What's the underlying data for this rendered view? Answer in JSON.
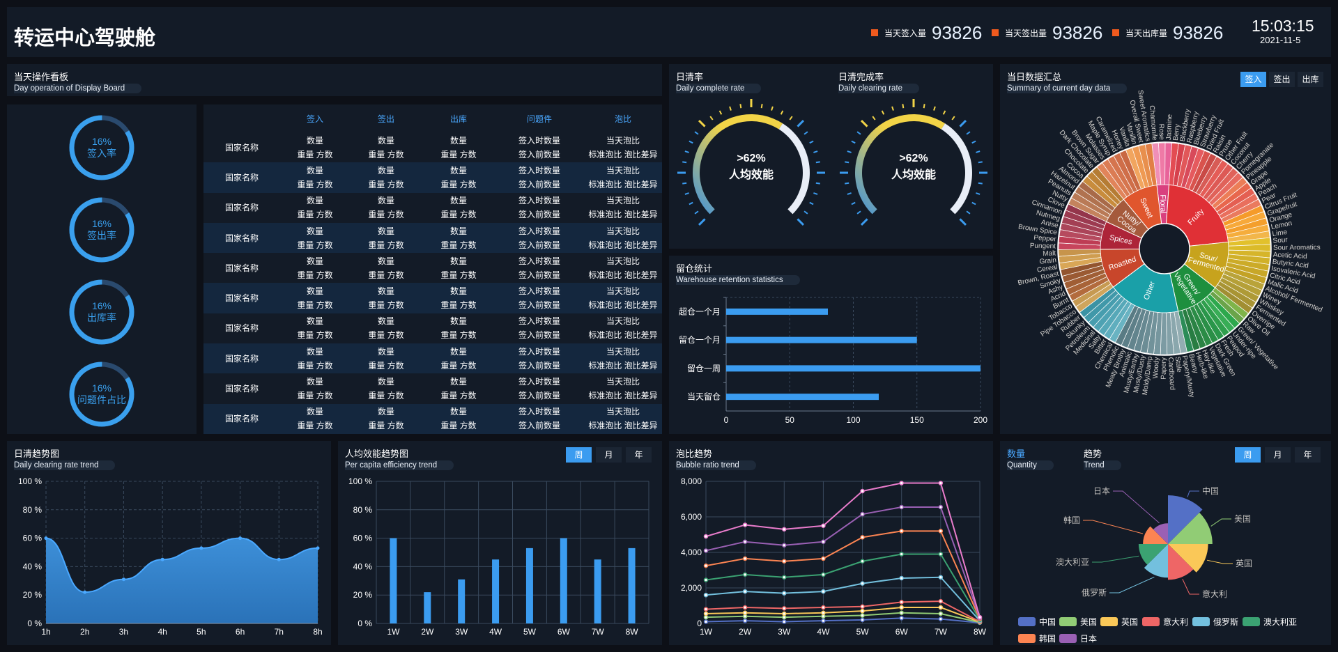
{
  "header": {
    "title": "转运中心驾驶舱",
    "stats": [
      {
        "label": "当天签入量",
        "value": "93826"
      },
      {
        "label": "当天签出量",
        "value": "93826"
      },
      {
        "label": "当天出库量",
        "value": "93826"
      }
    ],
    "time": "15:03:15",
    "date": "2021-11-5"
  },
  "day_board": {
    "title": "当天操作看板",
    "subtitle": "Day operation of Display Board",
    "rings": [
      {
        "pct": "16%",
        "label": "签入率",
        "value": 16
      },
      {
        "pct": "16%",
        "label": "签出率",
        "value": 16
      },
      {
        "pct": "16%",
        "label": "出库率",
        "value": 16
      },
      {
        "pct": "16%",
        "label": "问题件占比",
        "value": 16
      }
    ],
    "table": {
      "headers": [
        "",
        "签入",
        "签出",
        "出库",
        "问题件",
        "泡比"
      ],
      "row": {
        "country": "国家名称",
        "c1a": "数量",
        "c1b": "重量 方数",
        "c2a": "数量",
        "c2b": "重量 方数",
        "c3a": "数量",
        "c3b": "重量 方数",
        "c4a": "签入时数量",
        "c4b": "签入前数量",
        "c5a": "当天泡比",
        "c5b": "标准泡比 泡比差异"
      },
      "row_count": 10
    }
  },
  "gauges": [
    {
      "title": "日清率",
      "subtitle": "Daily complete rate",
      "value": ">62%",
      "label": "人均效能",
      "pct": 62
    },
    {
      "title": "日清完成率",
      "subtitle": "Daily clearing rate",
      "value": ">62%",
      "label": "人均效能",
      "pct": 62
    }
  ],
  "retention": {
    "title": "留仓统计",
    "subtitle": "Warehouse retention statistics",
    "chart_data": {
      "type": "bar",
      "orientation": "horizontal",
      "categories": [
        "超仓一个月",
        "留仓一个月",
        "留仓一周",
        "当天留仓"
      ],
      "values": [
        80,
        150,
        200,
        120
      ],
      "xlim": [
        0,
        200
      ],
      "xticks": [
        "0",
        "50",
        "100",
        "150",
        "200"
      ]
    }
  },
  "summary": {
    "title": "当日数据汇总",
    "subtitle": "Summary of current day data",
    "buttons": [
      "签入",
      "签出",
      "出库"
    ],
    "chart_data": {
      "type": "sunburst",
      "inner": [
        {
          "name": "Floral",
          "color": "#d9407f",
          "outer": [
            [
              "Chamomile",
              "#f08fb7"
            ],
            [
              "Rose",
              "#ef7aa6"
            ],
            [
              "Jasmine",
              "#e8639a"
            ]
          ]
        },
        {
          "name": "Fruity",
          "color": "#e03036",
          "outer": [
            [
              "Berry",
              "#e34c53"
            ],
            [
              "Blackberry",
              "#d6414c"
            ],
            [
              "Raspberry",
              "#e15759"
            ],
            [
              "Blueberry",
              "#d84a5a"
            ],
            [
              "Strawberry",
              "#e55a5e"
            ],
            [
              "Dried Fruit",
              "#d9534d"
            ],
            [
              "Raisin",
              "#c94a46"
            ],
            [
              "Prune",
              "#d75c56"
            ],
            [
              "Other Fruit",
              "#e45c57"
            ],
            [
              "Coconut",
              "#dd5955"
            ],
            [
              "Cherry",
              "#e0625a"
            ],
            [
              "Pomegranate",
              "#e76a60"
            ],
            [
              "Pineapple",
              "#ec7d57"
            ],
            [
              "Grape",
              "#e8674d"
            ],
            [
              "Apple",
              "#e45f52"
            ],
            [
              "Peach",
              "#e96f5d"
            ],
            [
              "Pear",
              "#ea7a5e"
            ],
            [
              "Citrus Fruit",
              "#f59b2a"
            ],
            [
              "Grapefruit",
              "#f7a93a"
            ],
            [
              "Orange",
              "#f49f2c"
            ],
            [
              "Lemon",
              "#f5ad3c"
            ],
            [
              "Lime",
              "#f2b64a"
            ]
          ]
        },
        {
          "name": "Sour/ Fermented",
          "color": "#c7a31d",
          "outer": [
            [
              "Sour",
              "#e2c12c"
            ],
            [
              "Sour Aromatics",
              "#dbbb2a"
            ],
            [
              "Acetic Acid",
              "#d6b52a"
            ],
            [
              "Butyric Acid",
              "#d1b12a"
            ],
            [
              "Isovaleric Acid",
              "#ccab28"
            ],
            [
              "Citric Acid",
              "#c8a728"
            ],
            [
              "Malic Acid",
              "#c3a226"
            ],
            [
              "Alcohol/ Fermented",
              "#b9a33a"
            ],
            [
              "Winey",
              "#b5a038"
            ],
            [
              "Whiskey",
              "#ae9a36"
            ],
            [
              "Fermented",
              "#a89434"
            ],
            [
              "Overripe",
              "#a18e32"
            ]
          ]
        },
        {
          "name": "Green/ Vegetative",
          "color": "#1e8f3e",
          "outer": [
            [
              "Olive Oil",
              "#7fb44a"
            ],
            [
              "Raw",
              "#6aa44a"
            ],
            [
              "Green/ Vegetative",
              "#2da84d"
            ],
            [
              "Under-ripe",
              "#38ad56"
            ],
            [
              "Peapod",
              "#2f9f4d"
            ],
            [
              "Fresh",
              "#29964a"
            ],
            [
              "Dark Green",
              "#2a8f47"
            ],
            [
              "Vegetative",
              "#2b8c46"
            ],
            [
              "Hay-like",
              "#2a8344"
            ],
            [
              "Herb-like",
              "#287d42"
            ],
            [
              "Beany",
              "#2c8c58"
            ]
          ]
        },
        {
          "name": "Other",
          "color": "#1aa0a8",
          "outer": [
            [
              "Papery/Musty",
              "#93adb2"
            ],
            [
              "Stale",
              "#8aa7ad"
            ],
            [
              "Cardboard",
              "#83a1a8"
            ],
            [
              "Papery",
              "#7c9ba3"
            ],
            [
              "Woody",
              "#76969e"
            ],
            [
              "Moldy/Damp",
              "#71929a"
            ],
            [
              "Musty/Dusty",
              "#6c8d95"
            ],
            [
              "Musty/Earthy",
              "#668891"
            ],
            [
              "Animalic",
              "#62848d"
            ],
            [
              "Meaty Brothy",
              "#5d7f88"
            ],
            [
              "Phenolic",
              "#597b84"
            ],
            [
              "Chemical",
              "#69b3c2"
            ],
            [
              "Bitter",
              "#5faebe"
            ],
            [
              "Salty",
              "#56a8b8"
            ],
            [
              "Medicinal",
              "#4ea2b3"
            ],
            [
              "Petroleum",
              "#479dae"
            ],
            [
              "Skunky",
              "#4098a9"
            ],
            [
              "Rubber",
              "#3b93a4"
            ]
          ]
        },
        {
          "name": "Roasted",
          "color": "#c8462b",
          "outer": [
            [
              "Pipe Tobacco",
              "#cfa55c"
            ],
            [
              "Tobacco",
              "#c69a52"
            ],
            [
              "Burnt",
              "#b36b3d"
            ],
            [
              "Acrid",
              "#a86338"
            ],
            [
              "Ashy",
              "#a05e35"
            ],
            [
              "Smoky",
              "#9a5a33"
            ],
            [
              "Brown, Roast",
              "#93552f"
            ],
            [
              "Cereal",
              "#d9a656"
            ],
            [
              "Grain",
              "#cf9d50"
            ],
            [
              "Malt",
              "#c7944b"
            ]
          ]
        },
        {
          "name": "Spices",
          "color": "#ad2438",
          "outer": [
            [
              "Pungent",
              "#c7445c"
            ],
            [
              "Pepper",
              "#be3c54"
            ],
            [
              "Brown Spice",
              "#b64a5e"
            ],
            [
              "Anise",
              "#ab4459"
            ],
            [
              "Nutmeg",
              "#a33f54"
            ],
            [
              "Cinnamon",
              "#9c3a50"
            ],
            [
              "Clove",
              "#94354b"
            ]
          ]
        },
        {
          "name": "Nutty/ Cocoa",
          "color": "#a55a3c",
          "outer": [
            [
              "Nutty",
              "#c4835d"
            ],
            [
              "Peanuts",
              "#b97a56"
            ],
            [
              "Hazelnut",
              "#b0724f"
            ],
            [
              "Almond",
              "#a86a49"
            ],
            [
              "Cocoa",
              "#c88c3c"
            ],
            [
              "Chocolate",
              "#bf8438"
            ],
            [
              "Dark Chocolate",
              "#b57c34"
            ]
          ]
        },
        {
          "name": "Sweet",
          "color": "#e0562d",
          "outer": [
            [
              "Brown Sugar",
              "#e1845a"
            ],
            [
              "Molasses",
              "#db7c54"
            ],
            [
              "Maple Syrup",
              "#d5754e"
            ],
            [
              "Caramelized",
              "#cf6e49"
            ],
            [
              "Honey",
              "#c96843"
            ],
            [
              "Vanilla",
              "#f1a55f"
            ],
            [
              "Vanillin",
              "#ef9a53"
            ],
            [
              "Overall Sweet",
              "#e88f4d"
            ],
            [
              "Sweet Aromatics",
              "#e17f45"
            ]
          ]
        }
      ]
    }
  },
  "daily_trend": {
    "title": "日清趋势图",
    "subtitle": "Daily clearing rate trend",
    "chart_data": {
      "type": "area",
      "x": [
        "1h",
        "2h",
        "3h",
        "4h",
        "5h",
        "6h",
        "7h",
        "8h"
      ],
      "values": [
        60,
        22,
        31,
        45,
        53,
        60,
        45,
        53
      ],
      "ylim": [
        0,
        100
      ],
      "yticks": [
        "0 %",
        "20 %",
        "40 %",
        "60 %",
        "80 %",
        "100 %"
      ]
    }
  },
  "per_capita": {
    "title": "人均效能趋势图",
    "subtitle": "Per capita efficiency trend",
    "buttons": [
      "周",
      "月",
      "年"
    ],
    "chart_data": {
      "type": "bar",
      "categories": [
        "1W",
        "2W",
        "3W",
        "4W",
        "5W",
        "6W",
        "7W",
        "8W"
      ],
      "values": [
        60,
        22,
        31,
        45,
        53,
        60,
        45,
        53
      ],
      "ylim": [
        0,
        100
      ],
      "yticks": [
        "0 %",
        "20 %",
        "40 %",
        "60 %",
        "80 %",
        "100 %"
      ]
    }
  },
  "bubble": {
    "title": "泡比趋势",
    "subtitle": "Bubble ratio trend",
    "chart_data": {
      "type": "line",
      "x": [
        "1W",
        "2W",
        "3W",
        "4W",
        "5W",
        "6W",
        "7W",
        "8W"
      ],
      "ylim": [
        0,
        8000
      ],
      "yticks": [
        "0",
        "2,000",
        "4,000",
        "6,000",
        "8,000"
      ],
      "series": [
        {
          "color": "#ea7ccc",
          "values": [
            4900,
            5550,
            5300,
            5500,
            7450,
            7900,
            7900,
            350
          ]
        },
        {
          "color": "#9a60b4",
          "values": [
            4100,
            4600,
            4400,
            4600,
            6150,
            6550,
            6550,
            300
          ]
        },
        {
          "color": "#fc8452",
          "values": [
            3250,
            3650,
            3500,
            3650,
            4850,
            5200,
            5200,
            250
          ]
        },
        {
          "color": "#3ba272",
          "values": [
            2450,
            2750,
            2600,
            2750,
            3500,
            3900,
            3900,
            200
          ]
        },
        {
          "color": "#73c0de",
          "values": [
            1600,
            1800,
            1700,
            1800,
            2250,
            2550,
            2600,
            150
          ]
        },
        {
          "color": "#ee6666",
          "values": [
            800,
            900,
            850,
            900,
            950,
            1200,
            1250,
            100
          ]
        },
        {
          "color": "#fac858",
          "values": [
            550,
            600,
            550,
            600,
            700,
            900,
            900,
            80
          ]
        },
        {
          "color": "#91cc75",
          "values": [
            350,
            400,
            350,
            400,
            450,
            600,
            550,
            60
          ]
        },
        {
          "color": "#5470c6",
          "values": [
            100,
            150,
            100,
            150,
            200,
            300,
            250,
            40
          ]
        }
      ]
    }
  },
  "quantity": {
    "title": "数量",
    "subtitle": "Quantity",
    "title2": "趋势",
    "subtitle2": "Trend",
    "buttons": [
      "周",
      "月",
      "年"
    ],
    "chart_data": {
      "type": "pie",
      "rose": true,
      "slices": [
        {
          "name": "中国",
          "value": 40,
          "color": "#5470c6"
        },
        {
          "name": "美国",
          "value": 36,
          "color": "#91cc75"
        },
        {
          "name": "英国",
          "value": 32,
          "color": "#fac858"
        },
        {
          "name": "意大利",
          "value": 28,
          "color": "#ee6666"
        },
        {
          "name": "俄罗斯",
          "value": 26,
          "color": "#73c0de"
        },
        {
          "name": "澳大利亚",
          "value": 22,
          "color": "#3ba272"
        },
        {
          "name": "韩国",
          "value": 18,
          "color": "#fc8452"
        },
        {
          "name": "日本",
          "value": 14,
          "color": "#9a60b4"
        }
      ]
    }
  }
}
